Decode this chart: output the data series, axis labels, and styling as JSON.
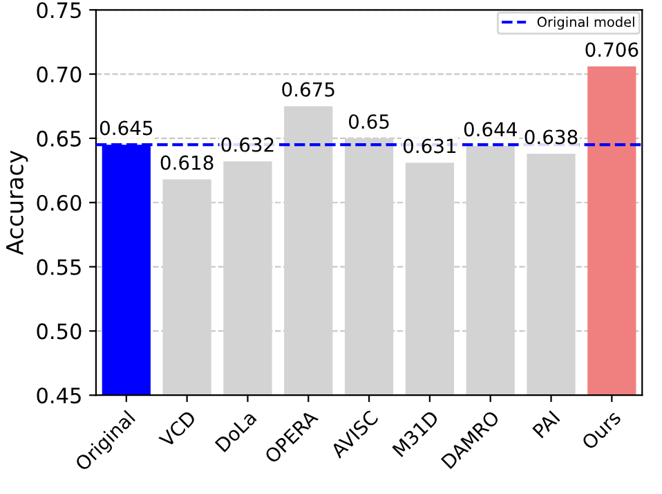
{
  "chart_data": {
    "type": "bar",
    "ylabel": "Accuracy",
    "categories": [
      "Original",
      "VCD",
      "DoLa",
      "OPERA",
      "AVISC",
      "M31D",
      "DAMRO",
      "PAI",
      "Ours"
    ],
    "values": [
      0.645,
      0.618,
      0.632,
      0.675,
      0.65,
      0.631,
      0.644,
      0.638,
      0.706
    ],
    "colors": [
      "#0000ff",
      "#d3d3d3",
      "#d3d3d3",
      "#d3d3d3",
      "#d3d3d3",
      "#d3d3d3",
      "#d3d3d3",
      "#d3d3d3",
      "#f08080"
    ],
    "data_labels": true,
    "ylim": [
      0.45,
      0.75
    ],
    "yticks": [
      0.45,
      {
        "value": 0.5,
        "label": "0.50"
      },
      0.55,
      {
        "value": 0.6,
        "label": "0.60"
      },
      0.65,
      {
        "value": 0.7,
        "label": "0.70"
      },
      0.75
    ],
    "ref_lines": [
      {
        "axis": "y",
        "value": 0.645,
        "label": "Original model",
        "color": "#0000ff",
        "line_style": "dashed"
      }
    ],
    "grid": "y",
    "legend": "top right"
  }
}
